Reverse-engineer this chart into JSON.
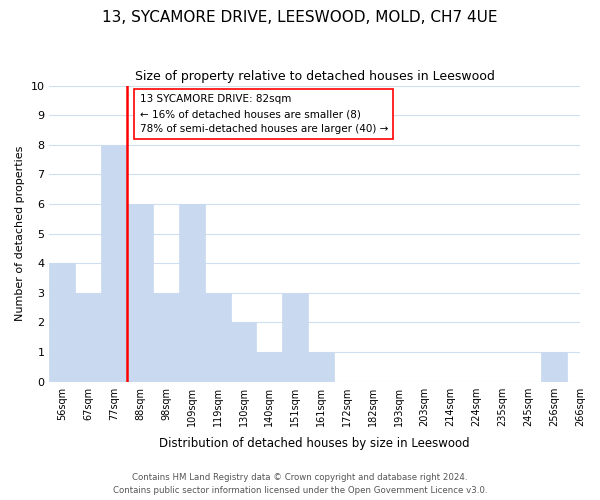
{
  "title": "13, SYCAMORE DRIVE, LEESWOOD, MOLD, CH7 4UE",
  "subtitle": "Size of property relative to detached houses in Leeswood",
  "xlabel": "Distribution of detached houses by size in Leeswood",
  "ylabel": "Number of detached properties",
  "bins": [
    "56sqm",
    "67sqm",
    "77sqm",
    "88sqm",
    "98sqm",
    "109sqm",
    "119sqm",
    "130sqm",
    "140sqm",
    "151sqm",
    "161sqm",
    "172sqm",
    "182sqm",
    "193sqm",
    "203sqm",
    "214sqm",
    "224sqm",
    "235sqm",
    "245sqm",
    "256sqm",
    "266sqm"
  ],
  "counts": [
    4,
    3,
    8,
    6,
    3,
    6,
    3,
    2,
    1,
    3,
    1,
    0,
    0,
    0,
    0,
    0,
    0,
    0,
    0,
    1
  ],
  "bar_color": "#c9d9f0",
  "grid_color": "#d0dff0",
  "subject_line_color": "red",
  "annotation_line1": "13 SYCAMORE DRIVE: 82sqm",
  "annotation_line2": "← 16% of detached houses are smaller (8)",
  "annotation_line3": "78% of semi-detached houses are larger (40) →",
  "ylim": [
    0,
    10
  ],
  "yticks": [
    0,
    1,
    2,
    3,
    4,
    5,
    6,
    7,
    8,
    9,
    10
  ],
  "footer1": "Contains HM Land Registry data © Crown copyright and database right 2024.",
  "footer2": "Contains public sector information licensed under the Open Government Licence v3.0.",
  "bg_color": "#ffffff"
}
